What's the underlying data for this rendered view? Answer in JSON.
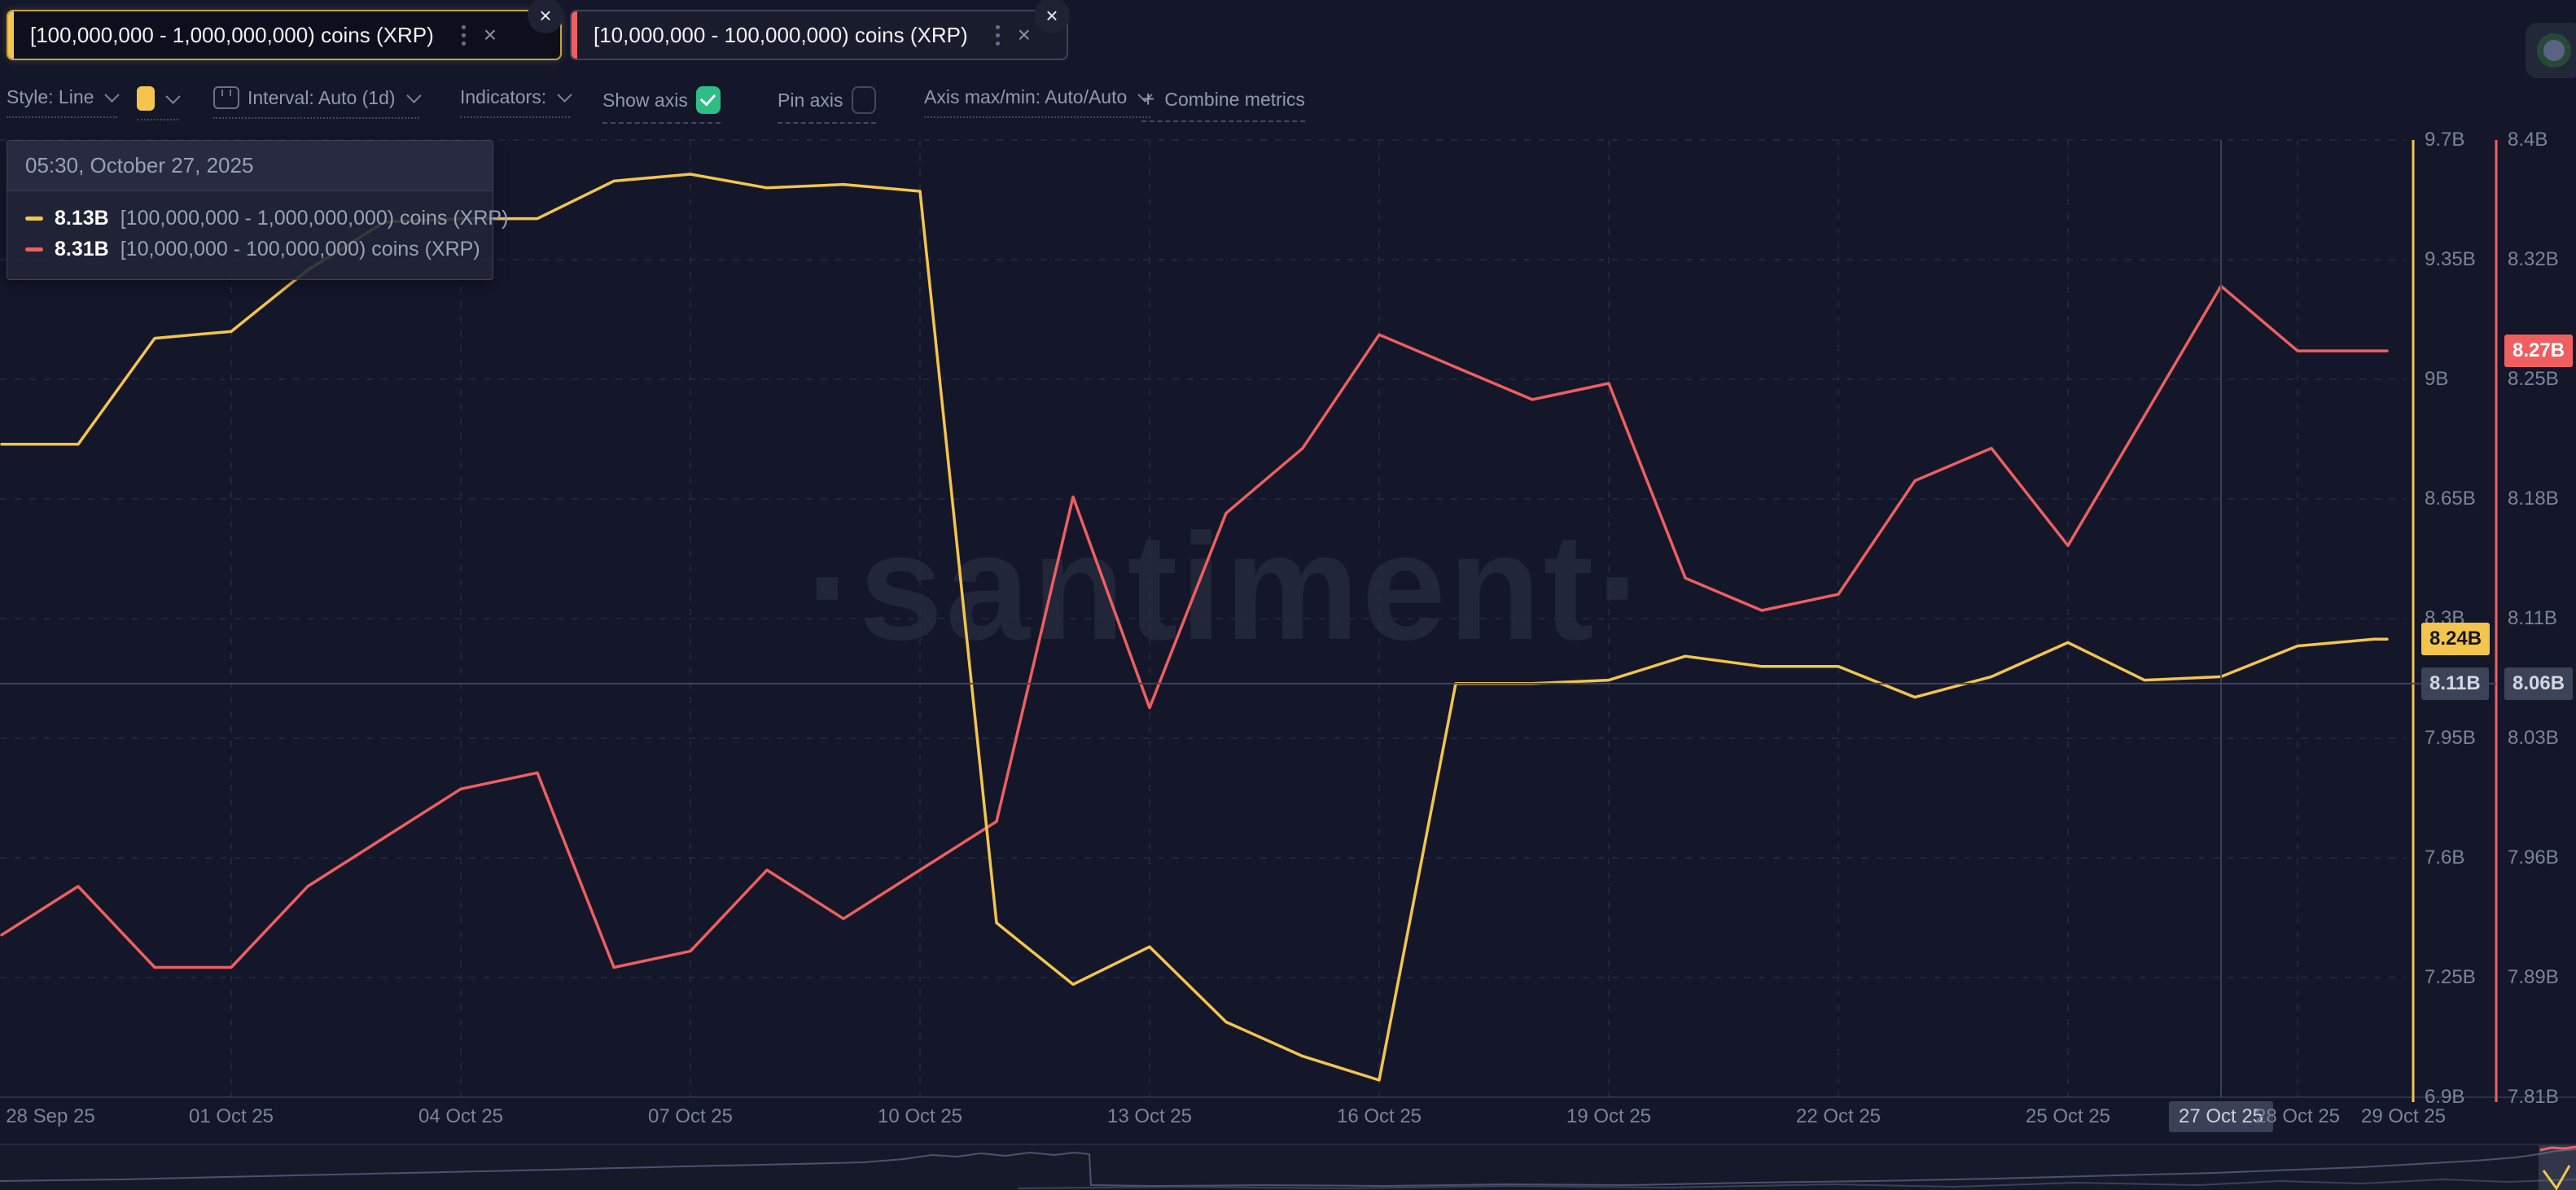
{
  "watermark": "·santiment·",
  "tabs": [
    {
      "label": "[100,000,000 - 1,000,000,000) coins (XRP)",
      "color": "#f4c54c",
      "selected": true
    },
    {
      "label": "[10,000,000 - 100,000,000) coins (XRP)",
      "color": "#ef5f5f",
      "selected": false
    }
  ],
  "toolbar": {
    "style_label": "Style: Line",
    "interval_label": "Interval: Auto (1d)",
    "indicators_label": "Indicators:",
    "show_axis_label": "Show axis",
    "show_axis_checked": true,
    "pin_axis_label": "Pin axis",
    "pin_axis_checked": false,
    "axis_maxmin_label": "Axis max/min: Auto/Auto",
    "combine_label": "Combine metrics",
    "swatch_color": "#f4c54c"
  },
  "tooltip": {
    "time": "05:30, October 27, 2025",
    "rows": [
      {
        "value": "8.13B",
        "label": "[100,000,000 - 1,000,000,000) coins (XRP)",
        "color": "#f4c54c"
      },
      {
        "value": "8.31B",
        "label": "[10,000,000 - 100,000,000) coins (XRP)",
        "color": "#ef5f5f"
      }
    ]
  },
  "chart_data": {
    "type": "line",
    "interval": "1d",
    "start_date": "28 Sep 25",
    "end_date": "29 Oct 25",
    "series": [
      {
        "name": "[100,000,000 - 1,000,000,000) coins (XRP)",
        "axis": "left",
        "color": "#f4c54c",
        "values": [
          8.81,
          8.81,
          9.12,
          9.14,
          9.32,
          9.46,
          9.47,
          9.47,
          9.58,
          9.6,
          9.56,
          9.57,
          9.55,
          7.41,
          7.23,
          7.34,
          7.12,
          7.02,
          6.95,
          8.11,
          8.11,
          8.12,
          8.19,
          8.16,
          8.16,
          8.07,
          8.13,
          8.23,
          8.12,
          8.13,
          8.22,
          8.24
        ]
      },
      {
        "name": "[10,000,000 - 100,000,000) coins (XRP)",
        "axis": "right",
        "color": "#ef5f5f",
        "values": [
          7.91,
          7.94,
          7.89,
          7.89,
          7.94,
          7.97,
          8.0,
          8.01,
          7.89,
          7.9,
          7.95,
          7.92,
          7.95,
          7.98,
          8.18,
          8.05,
          8.17,
          8.21,
          8.28,
          8.26,
          8.24,
          8.25,
          8.13,
          8.11,
          8.12,
          8.19,
          8.21,
          8.15,
          8.23,
          8.31,
          8.27,
          8.27
        ]
      }
    ],
    "y_left": {
      "min": 6.9,
      "max": 9.7,
      "unit": "B",
      "ticks": [
        "9.7B",
        "9.35B",
        "9B",
        "8.65B",
        "8.3B",
        "7.95B",
        "7.6B",
        "7.25B",
        "6.9B"
      ]
    },
    "y_right": {
      "min": 7.81,
      "max": 8.4,
      "unit": "B",
      "ticks": [
        "8.4B",
        "8.32B",
        "8.25B",
        "8.18B",
        "8.11B",
        "8.03B",
        "7.96B",
        "7.89B",
        "7.81B"
      ]
    },
    "x_ticks": [
      {
        "label": "28 Sep 25",
        "day": 0,
        "dx": 60
      },
      {
        "label": "01 Oct 25",
        "day": 3
      },
      {
        "label": "04 Oct 25",
        "day": 6
      },
      {
        "label": "07 Oct 25",
        "day": 9
      },
      {
        "label": "10 Oct 25",
        "day": 12
      },
      {
        "label": "13 Oct 25",
        "day": 15
      },
      {
        "label": "16 Oct 25",
        "day": 18
      },
      {
        "label": "19 Oct 25",
        "day": 21
      },
      {
        "label": "22 Oct 25",
        "day": 24
      },
      {
        "label": "25 Oct 25",
        "day": 27
      },
      {
        "label": "27 Oct 25",
        "day": 29,
        "highlighted": true
      },
      {
        "label": "28 Oct 25",
        "day": 30
      },
      {
        "label": "29 Oct 25",
        "day": 31,
        "dx": 36
      }
    ],
    "grid": {
      "h_dashed": true,
      "v_dashed_days": [
        3,
        6,
        9,
        12,
        15,
        18,
        21,
        24,
        27,
        30
      ]
    },
    "crosshair": {
      "day": 29,
      "left_value": 8.11,
      "right_value": 8.06
    },
    "axis_badges": [
      {
        "axis": "right",
        "label": "8.27B",
        "value": 8.27,
        "bg": "#ef5f5f",
        "fg": "#ffffff",
        "kind": "last"
      },
      {
        "axis": "left",
        "label": "8.24B",
        "value": 8.24,
        "bg": "#f4c54c",
        "fg": "#16181f",
        "kind": "last"
      },
      {
        "axis": "left",
        "label": "8.11B",
        "bg": "#3d4357",
        "fg": "#d2d6e4",
        "kind": "crosshair"
      },
      {
        "axis": "right",
        "label": "8.06B",
        "bg": "#3d4357",
        "fg": "#d2d6e4",
        "kind": "crosshair"
      }
    ]
  },
  "navigator": {
    "preview_upper": [
      [
        0,
        1451
      ],
      [
        150,
        1449
      ],
      [
        320,
        1445
      ],
      [
        500,
        1441
      ],
      [
        680,
        1437
      ],
      [
        840,
        1433
      ],
      [
        980,
        1430
      ],
      [
        1060,
        1428
      ],
      [
        1110,
        1424
      ],
      [
        1145,
        1419
      ],
      [
        1175,
        1421
      ],
      [
        1205,
        1417
      ],
      [
        1235,
        1420
      ],
      [
        1265,
        1416
      ],
      [
        1295,
        1419
      ],
      [
        1320,
        1416
      ],
      [
        1338,
        1418
      ],
      [
        1340,
        1456
      ],
      [
        1420,
        1457
      ],
      [
        1550,
        1456
      ],
      [
        1700,
        1457
      ],
      [
        1850,
        1455
      ],
      [
        2000,
        1456
      ],
      [
        2150,
        1453
      ],
      [
        2300,
        1451
      ],
      [
        2450,
        1448
      ],
      [
        2600,
        1444
      ],
      [
        2720,
        1441
      ],
      [
        2820,
        1437
      ],
      [
        2900,
        1434
      ],
      [
        2970,
        1430
      ],
      [
        3040,
        1426
      ],
      [
        3090,
        1422
      ],
      [
        3118,
        1418
      ],
      [
        3140,
        1414
      ],
      [
        3164,
        1412
      ]
    ],
    "preview_lower": [
      [
        1250,
        1460
      ],
      [
        1450,
        1458
      ],
      [
        1650,
        1460
      ],
      [
        1850,
        1457
      ],
      [
        2050,
        1459
      ],
      [
        2250,
        1455
      ],
      [
        2400,
        1458
      ],
      [
        2550,
        1453
      ],
      [
        2700,
        1456
      ],
      [
        2800,
        1451
      ],
      [
        2900,
        1454
      ],
      [
        3000,
        1449
      ],
      [
        3080,
        1452
      ],
      [
        3164,
        1449
      ]
    ],
    "selection": {
      "x": 3118,
      "width": 46,
      "red_line": [
        [
          3120,
          1413
        ],
        [
          3134,
          1410
        ],
        [
          3150,
          1411
        ],
        [
          3164,
          1409
        ]
      ],
      "yellow_line": [
        [
          3124,
          1438
        ],
        [
          3140,
          1460
        ],
        [
          3156,
          1432
        ]
      ]
    }
  }
}
